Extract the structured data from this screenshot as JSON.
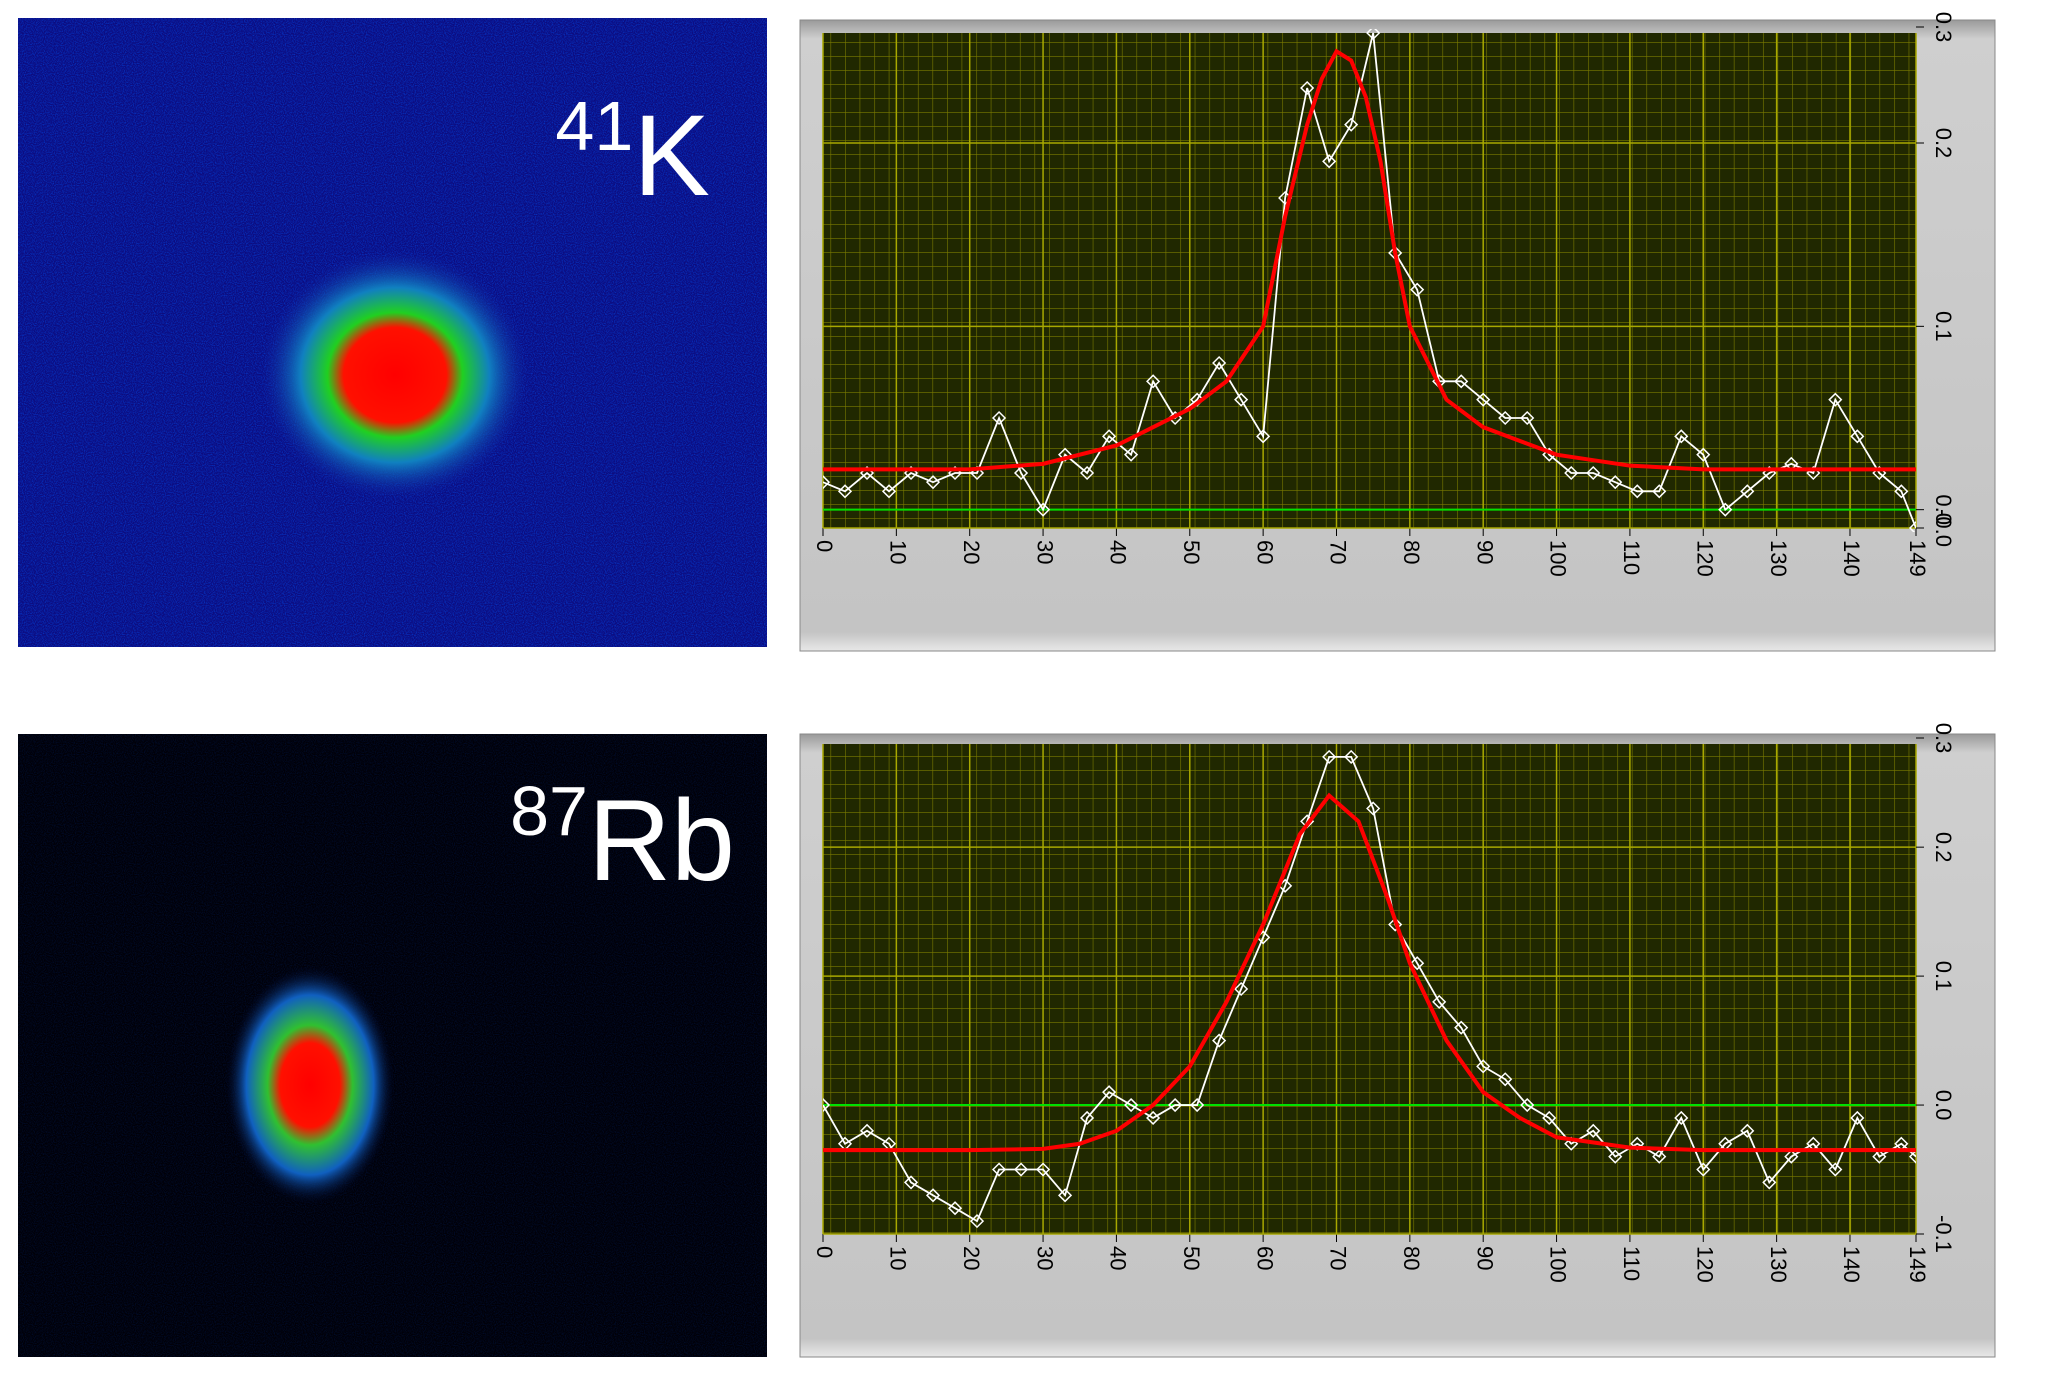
{
  "images": [
    {
      "isotope_mass": "41",
      "element": "K"
    },
    {
      "isotope_mass": "87",
      "element": "Rb"
    }
  ],
  "chart_data": [
    {
      "type": "line",
      "xlim": [
        0,
        149
      ],
      "ylim": [
        -0.01,
        0.26
      ],
      "xticks": [
        0,
        10,
        20,
        30,
        40,
        50,
        60,
        70,
        80,
        90,
        100,
        110,
        120,
        130,
        140,
        149
      ],
      "yticks": [
        {
          "value": -0.01,
          "label": "-0.0"
        },
        {
          "value": 0,
          "label": "0.0"
        },
        0.1,
        0.2,
        0.3
      ],
      "grid": true,
      "reference_line": {
        "value": 0,
        "color": "#00e000"
      },
      "series": [
        {
          "color": "#ffffff",
          "marker": "diamond",
          "x": [
            0,
            3,
            6,
            9,
            12,
            15,
            18,
            21,
            24,
            27,
            30,
            33,
            36,
            39,
            42,
            45,
            48,
            51,
            54,
            57,
            60,
            63,
            66,
            69,
            72,
            75,
            78,
            81,
            84,
            87,
            90,
            93,
            96,
            99,
            102,
            105,
            108,
            111,
            114,
            117,
            120,
            123,
            126,
            129,
            132,
            135,
            138,
            141,
            144,
            147,
            149
          ],
          "values": [
            0.015,
            0.01,
            0.02,
            0.01,
            0.02,
            0.015,
            0.02,
            0.02,
            0.05,
            0.02,
            0.0,
            0.03,
            0.02,
            0.04,
            0.03,
            0.07,
            0.05,
            0.06,
            0.08,
            0.06,
            0.04,
            0.17,
            0.23,
            0.19,
            0.21,
            0.26,
            0.14,
            0.12,
            0.07,
            0.07,
            0.06,
            0.05,
            0.05,
            0.03,
            0.02,
            0.02,
            0.015,
            0.01,
            0.01,
            0.04,
            0.03,
            0.0,
            0.01,
            0.02,
            0.025,
            0.02,
            0.06,
            0.04,
            0.02,
            0.01,
            -0.01
          ]
        },
        {
          "color": "#ff0000",
          "marker": "none",
          "x": [
            0,
            10,
            20,
            30,
            40,
            50,
            55,
            60,
            63,
            66,
            68,
            70,
            72,
            74,
            76,
            78,
            80,
            85,
            90,
            100,
            110,
            120,
            130,
            140,
            149
          ],
          "values": [
            0.022,
            0.022,
            0.022,
            0.025,
            0.035,
            0.055,
            0.07,
            0.1,
            0.16,
            0.21,
            0.235,
            0.25,
            0.245,
            0.225,
            0.19,
            0.14,
            0.1,
            0.06,
            0.045,
            0.03,
            0.024,
            0.022,
            0.022,
            0.022,
            0.022
          ]
        }
      ]
    },
    {
      "type": "line",
      "xlim": [
        0,
        149
      ],
      "ylim": [
        -0.1,
        0.28
      ],
      "xticks": [
        0,
        10,
        20,
        30,
        40,
        50,
        60,
        70,
        80,
        90,
        100,
        110,
        120,
        130,
        140,
        149
      ],
      "yticks": [
        -0.1,
        {
          "value": 0,
          "label": "0.0"
        },
        0.1,
        0.2,
        0.3
      ],
      "grid": true,
      "reference_line": {
        "value": 0,
        "color": "#00e000"
      },
      "series": [
        {
          "color": "#ffffff",
          "marker": "diamond",
          "x": [
            0,
            3,
            6,
            9,
            12,
            15,
            18,
            21,
            24,
            27,
            30,
            33,
            36,
            39,
            42,
            45,
            48,
            51,
            54,
            57,
            60,
            63,
            66,
            69,
            72,
            75,
            78,
            81,
            84,
            87,
            90,
            93,
            96,
            99,
            102,
            105,
            108,
            111,
            114,
            117,
            120,
            123,
            126,
            129,
            132,
            135,
            138,
            141,
            144,
            147,
            149
          ],
          "values": [
            0.0,
            -0.03,
            -0.02,
            -0.03,
            -0.06,
            -0.07,
            -0.08,
            -0.09,
            -0.05,
            -0.05,
            -0.05,
            -0.07,
            -0.01,
            0.01,
            0.0,
            -0.01,
            0.0,
            0.0,
            0.05,
            0.09,
            0.13,
            0.17,
            0.22,
            0.27,
            0.27,
            0.23,
            0.14,
            0.11,
            0.08,
            0.06,
            0.03,
            0.02,
            0.0,
            -0.01,
            -0.03,
            -0.02,
            -0.04,
            -0.03,
            -0.04,
            -0.01,
            -0.05,
            -0.03,
            -0.02,
            -0.06,
            -0.04,
            -0.03,
            -0.05,
            -0.01,
            -0.04,
            -0.03,
            -0.04
          ]
        },
        {
          "color": "#ff0000",
          "marker": "none",
          "x": [
            0,
            10,
            20,
            30,
            35,
            40,
            45,
            50,
            55,
            60,
            65,
            69,
            73,
            77,
            80,
            85,
            90,
            95,
            100,
            110,
            120,
            130,
            140,
            149
          ],
          "values": [
            -0.035,
            -0.035,
            -0.035,
            -0.034,
            -0.03,
            -0.02,
            0.0,
            0.03,
            0.08,
            0.14,
            0.21,
            0.24,
            0.22,
            0.16,
            0.11,
            0.05,
            0.01,
            -0.01,
            -0.025,
            -0.033,
            -0.035,
            -0.035,
            -0.035,
            -0.035
          ]
        }
      ]
    }
  ]
}
